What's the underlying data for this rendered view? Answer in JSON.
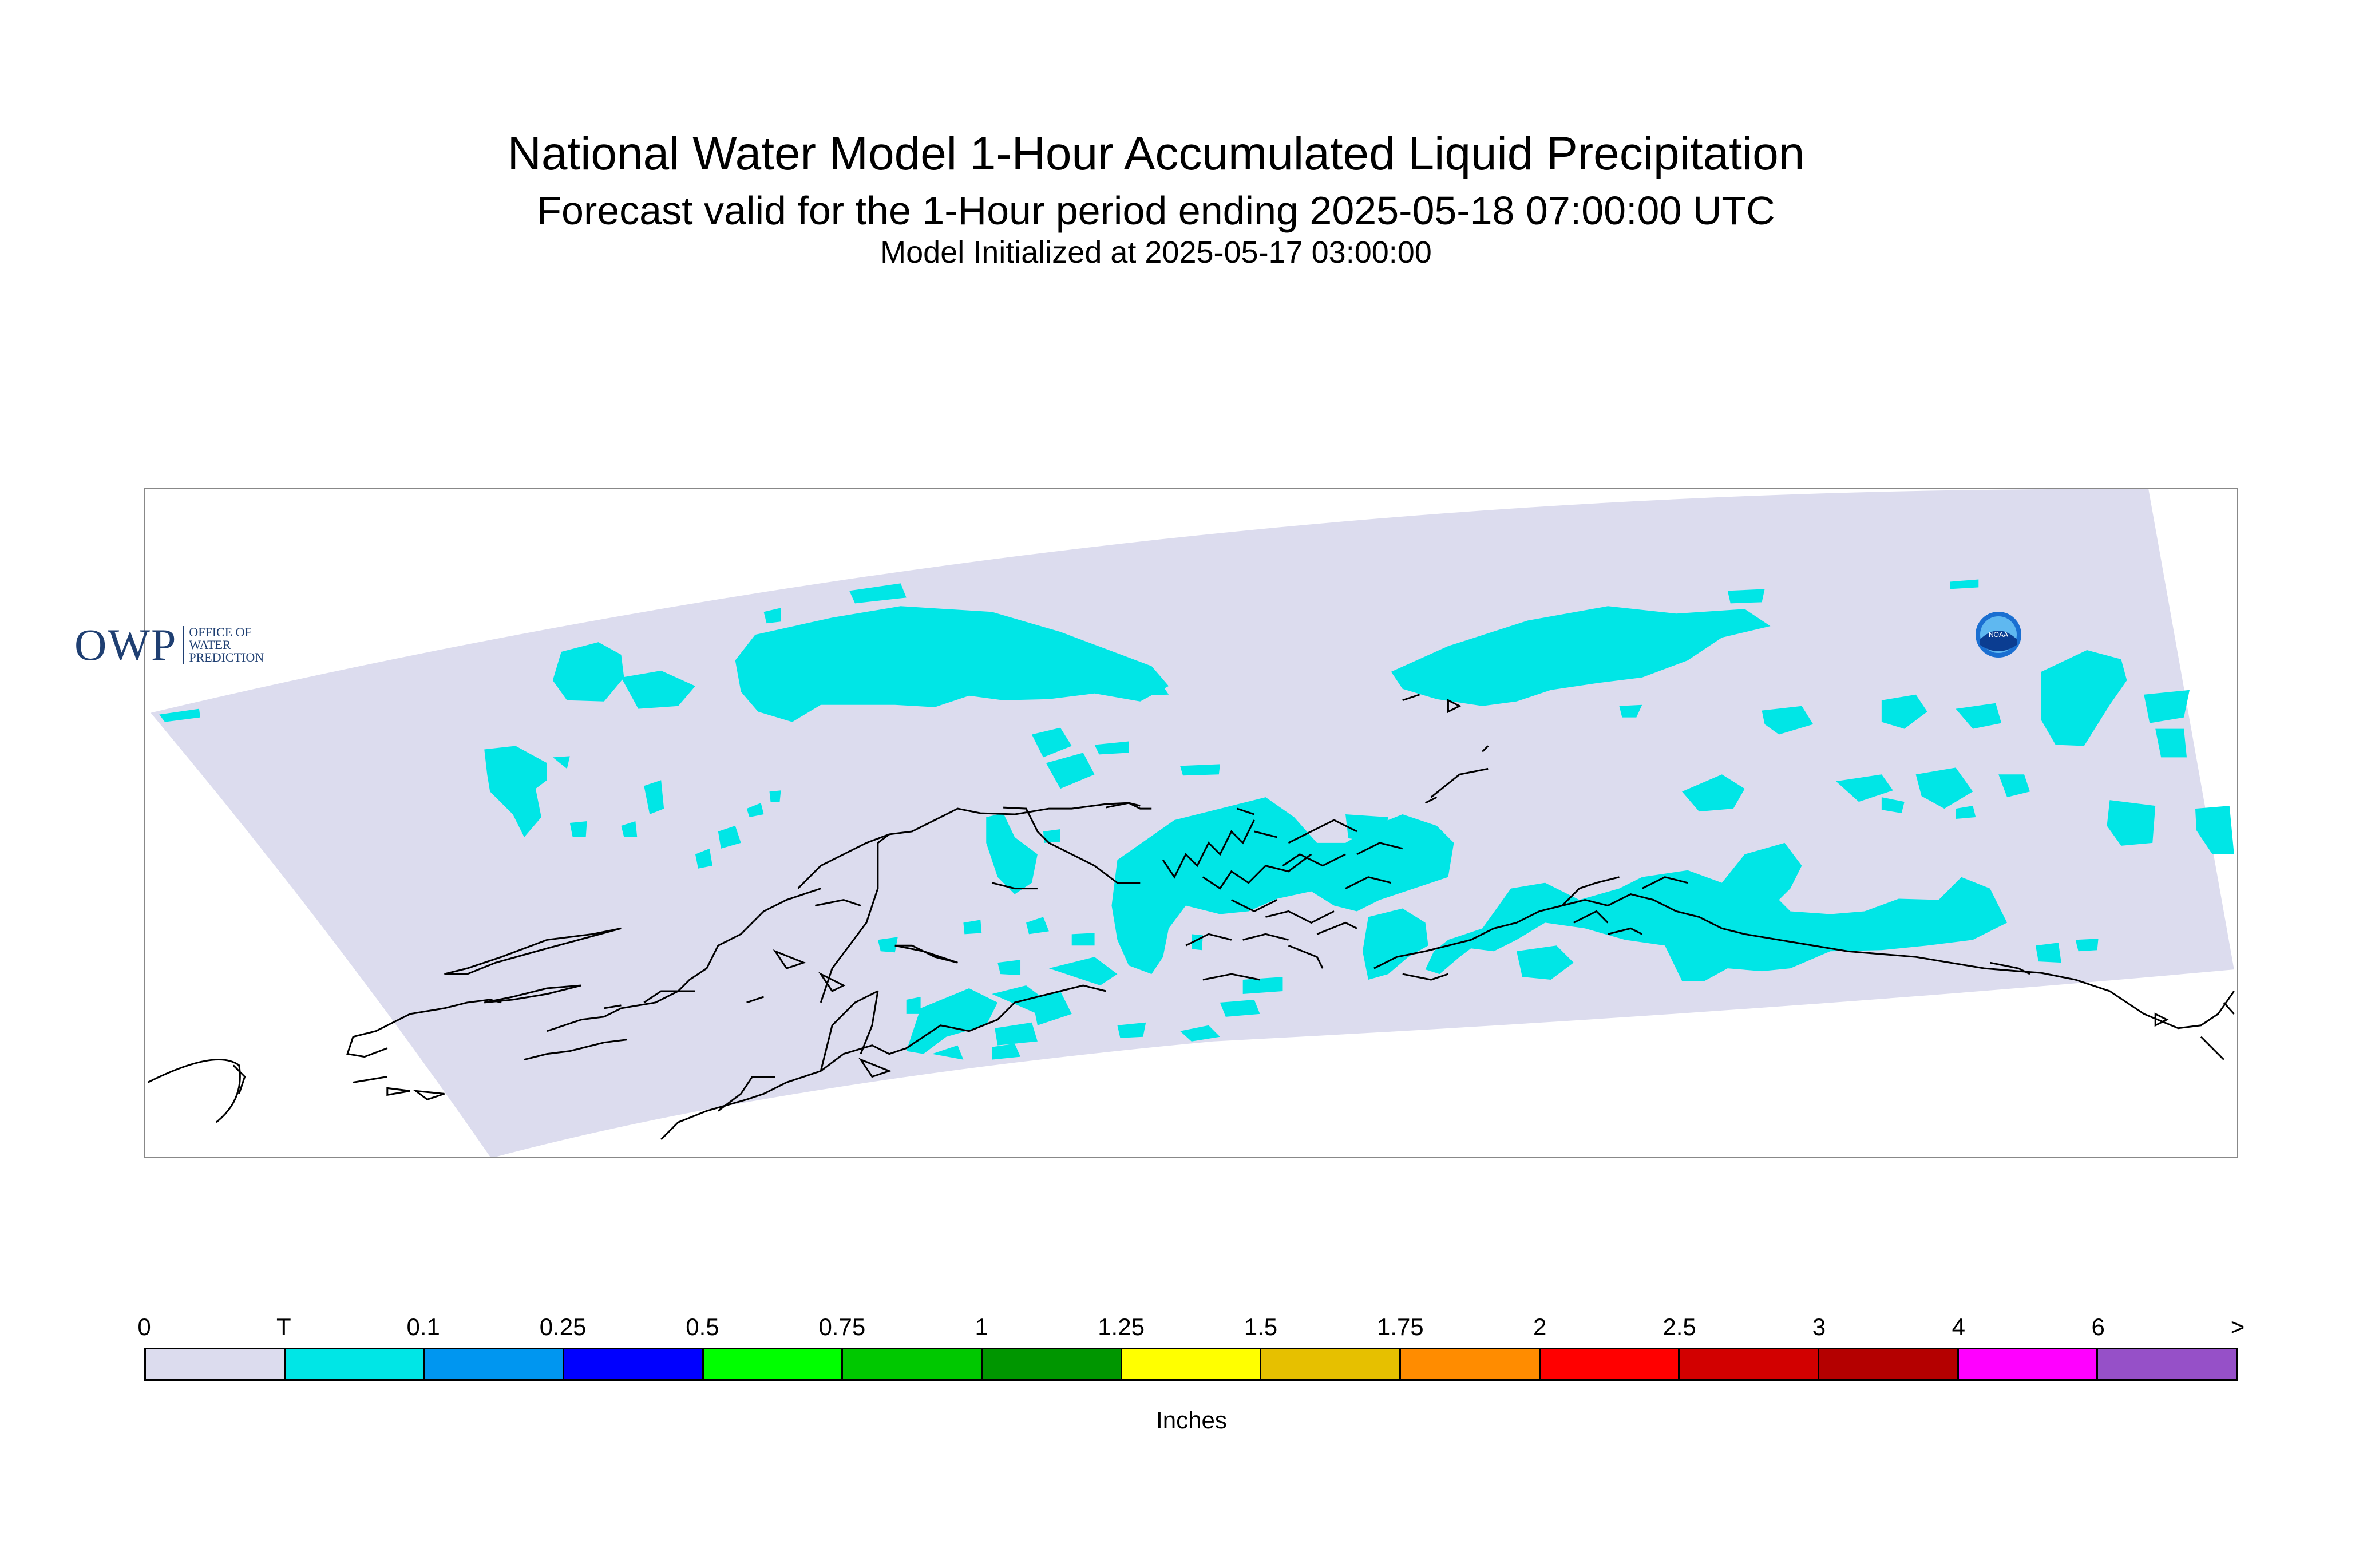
{
  "title": "National Water Model 1-Hour Accumulated Liquid Precipitation",
  "subtitle": "Forecast valid for the 1-Hour period ending 2025-05-18 07:00:00 UTC",
  "init_line": "Model Initialized at 2025-05-17 03:00:00",
  "logos": {
    "owp_letters": "OWP",
    "owp_text": [
      "OFFICE OF",
      "WATER",
      "PREDICTION"
    ],
    "noaa_text": "NOAA"
  },
  "colors": {
    "domain_fill": "#dcdcee",
    "trace": "#00e6e6",
    "coastline": "#000000"
  },
  "legend": {
    "labels": [
      "0",
      "T",
      "0.1",
      "0.25",
      "0.5",
      "0.75",
      "1",
      "1.25",
      "1.5",
      "1.75",
      "2",
      "2.5",
      "3",
      "4",
      "6",
      ">"
    ],
    "colors": [
      "#dcdcee",
      "#00e6e6",
      "#0096f0",
      "#0000ff",
      "#00ff00",
      "#00c800",
      "#009600",
      "#ffff00",
      "#e6c000",
      "#ff8c00",
      "#ff0000",
      "#d20000",
      "#b40000",
      "#ff00ff",
      "#9650c8"
    ],
    "units": "Inches"
  }
}
